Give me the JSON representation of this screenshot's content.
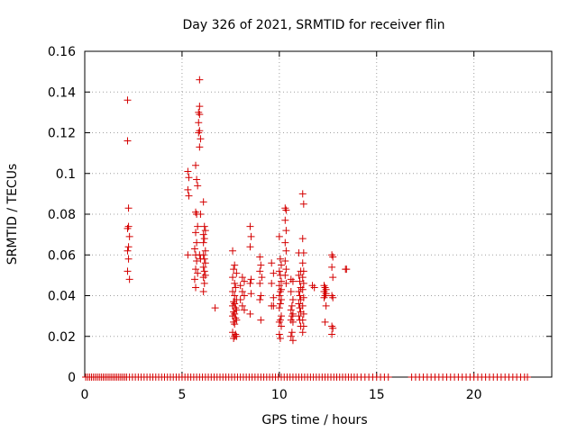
{
  "chart_data": {
    "type": "scatter",
    "title": "Day 326 of 2021, SRMTID for receiver flin",
    "xlabel": "GPS time / hours",
    "ylabel": "SRMTID / TECUs",
    "xlim": [
      0,
      24
    ],
    "ylim": [
      0,
      0.16
    ],
    "grid": true,
    "marker": "+",
    "marker_color": "#d40000",
    "xticks": [
      {
        "value": 0,
        "label": "0"
      },
      {
        "value": 5,
        "label": "5"
      },
      {
        "value": 10,
        "label": "10"
      },
      {
        "value": 15,
        "label": "15"
      },
      {
        "value": 20,
        "label": "20"
      }
    ],
    "yticks": [
      {
        "value": 0,
        "label": "0"
      },
      {
        "value": 0.02,
        "label": "0.02"
      },
      {
        "value": 0.04,
        "label": "0.04"
      },
      {
        "value": 0.06,
        "label": "0.06"
      },
      {
        "value": 0.08,
        "label": "0.08"
      },
      {
        "value": 0.1,
        "label": "0.1"
      },
      {
        "value": 0.12,
        "label": "0.12"
      },
      {
        "value": 0.14,
        "label": "0.14"
      },
      {
        "value": 0.16,
        "label": "0.16"
      }
    ],
    "zero_points_x": [
      0.05,
      0.15,
      0.25,
      0.35,
      0.45,
      0.55,
      0.65,
      0.75,
      0.85,
      0.95,
      1.05,
      1.15,
      1.25,
      1.35,
      1.45,
      1.55,
      1.65,
      1.75,
      1.85,
      1.95,
      2.05,
      2.15,
      2.3,
      2.45,
      2.6,
      2.75,
      2.9,
      3.05,
      3.2,
      3.35,
      3.5,
      3.65,
      3.8,
      3.95,
      4.1,
      4.25,
      4.4,
      4.55,
      4.7,
      4.85,
      5.0,
      5.15,
      5.3,
      5.45,
      5.6,
      5.75,
      5.9,
      6.05,
      6.2,
      6.35,
      6.5,
      6.65,
      6.8,
      6.95,
      7.1,
      7.25,
      7.4,
      7.55,
      7.7,
      7.85,
      8.0,
      8.15,
      8.3,
      8.45,
      8.6,
      8.75,
      8.9,
      9.05,
      9.2,
      9.35,
      9.5,
      9.65,
      9.8,
      9.95,
      10.1,
      10.25,
      10.4,
      10.55,
      10.7,
      10.85,
      11.0,
      11.15,
      11.3,
      11.45,
      11.6,
      11.75,
      11.9,
      12.05,
      12.2,
      12.35,
      12.5,
      12.65,
      12.8,
      12.95,
      13.1,
      13.25,
      13.4,
      13.55,
      13.7,
      13.85,
      14.0,
      14.2,
      14.4,
      14.6,
      14.8,
      15.0,
      15.2,
      15.4,
      15.6,
      16.8,
      17.0,
      17.2,
      17.4,
      17.6,
      17.8,
      18.0,
      18.2,
      18.4,
      18.6,
      18.8,
      19.0,
      19.2,
      19.4,
      19.6,
      19.8,
      20.0,
      20.2,
      20.4,
      20.6,
      20.8,
      21.0,
      21.2,
      21.4,
      21.6,
      21.8,
      22.0,
      22.2,
      22.4,
      22.6,
      22.75
    ],
    "points": [
      [
        2.2,
        0.136
      ],
      [
        2.2,
        0.116
      ],
      [
        2.25,
        0.083
      ],
      [
        2.25,
        0.074
      ],
      [
        2.2,
        0.073
      ],
      [
        2.3,
        0.069
      ],
      [
        2.25,
        0.064
      ],
      [
        2.2,
        0.062
      ],
      [
        2.25,
        0.058
      ],
      [
        2.2,
        0.052
      ],
      [
        2.3,
        0.048
      ],
      [
        5.3,
        0.101
      ],
      [
        5.35,
        0.098
      ],
      [
        5.3,
        0.092
      ],
      [
        5.35,
        0.089
      ],
      [
        5.3,
        0.06
      ],
      [
        5.7,
        0.104
      ],
      [
        5.75,
        0.097
      ],
      [
        5.8,
        0.094
      ],
      [
        5.7,
        0.081
      ],
      [
        5.75,
        0.08
      ],
      [
        5.8,
        0.074
      ],
      [
        5.7,
        0.071
      ],
      [
        5.75,
        0.066
      ],
      [
        5.65,
        0.063
      ],
      [
        5.7,
        0.06
      ],
      [
        5.75,
        0.057
      ],
      [
        5.7,
        0.053
      ],
      [
        5.8,
        0.051
      ],
      [
        5.65,
        0.048
      ],
      [
        5.7,
        0.044
      ],
      [
        5.9,
        0.146
      ],
      [
        5.9,
        0.133
      ],
      [
        5.85,
        0.13
      ],
      [
        5.9,
        0.129
      ],
      [
        5.85,
        0.125
      ],
      [
        5.9,
        0.121
      ],
      [
        5.85,
        0.12
      ],
      [
        5.95,
        0.117
      ],
      [
        5.9,
        0.113
      ],
      [
        5.95,
        0.08
      ],
      [
        5.9,
        0.06
      ],
      [
        5.95,
        0.058
      ],
      [
        6.1,
        0.086
      ],
      [
        6.15,
        0.074
      ],
      [
        6.2,
        0.072
      ],
      [
        6.1,
        0.07
      ],
      [
        6.15,
        0.068
      ],
      [
        6.1,
        0.066
      ],
      [
        6.2,
        0.062
      ],
      [
        6.1,
        0.06
      ],
      [
        6.15,
        0.058
      ],
      [
        6.2,
        0.056
      ],
      [
        6.1,
        0.054
      ],
      [
        6.15,
        0.052
      ],
      [
        6.2,
        0.05
      ],
      [
        6.1,
        0.049
      ],
      [
        6.15,
        0.046
      ],
      [
        6.1,
        0.042
      ],
      [
        6.7,
        0.034
      ],
      [
        7.6,
        0.062
      ],
      [
        7.7,
        0.055
      ],
      [
        7.65,
        0.053
      ],
      [
        7.8,
        0.051
      ],
      [
        7.6,
        0.049
      ],
      [
        7.7,
        0.046
      ],
      [
        7.75,
        0.044
      ],
      [
        7.6,
        0.042
      ],
      [
        7.7,
        0.04
      ],
      [
        7.8,
        0.038
      ],
      [
        7.65,
        0.037
      ],
      [
        7.7,
        0.036
      ],
      [
        7.6,
        0.035
      ],
      [
        7.75,
        0.034
      ],
      [
        7.8,
        0.033
      ],
      [
        7.65,
        0.032
      ],
      [
        7.7,
        0.031
      ],
      [
        7.6,
        0.03
      ],
      [
        7.75,
        0.029
      ],
      [
        7.8,
        0.028
      ],
      [
        7.65,
        0.027
      ],
      [
        7.7,
        0.026
      ],
      [
        7.6,
        0.022
      ],
      [
        7.75,
        0.021
      ],
      [
        7.7,
        0.02
      ],
      [
        7.65,
        0.019
      ],
      [
        7.8,
        0.02
      ],
      [
        8.1,
        0.049
      ],
      [
        8.2,
        0.047
      ],
      [
        8.0,
        0.045
      ],
      [
        8.1,
        0.042
      ],
      [
        8.2,
        0.04
      ],
      [
        8.0,
        0.038
      ],
      [
        8.1,
        0.035
      ],
      [
        8.2,
        0.033
      ],
      [
        8.5,
        0.074
      ],
      [
        8.55,
        0.069
      ],
      [
        8.5,
        0.064
      ],
      [
        8.55,
        0.048
      ],
      [
        8.5,
        0.046
      ],
      [
        8.55,
        0.041
      ],
      [
        8.5,
        0.031
      ],
      [
        9.0,
        0.059
      ],
      [
        9.05,
        0.055
      ],
      [
        9.0,
        0.052
      ],
      [
        9.1,
        0.049
      ],
      [
        9.0,
        0.046
      ],
      [
        9.05,
        0.04
      ],
      [
        9.0,
        0.038
      ],
      [
        9.05,
        0.028
      ],
      [
        9.6,
        0.056
      ],
      [
        9.7,
        0.051
      ],
      [
        9.6,
        0.046
      ],
      [
        9.7,
        0.039
      ],
      [
        9.6,
        0.035
      ],
      [
        9.7,
        0.035
      ],
      [
        10.0,
        0.069
      ],
      [
        10.05,
        0.058
      ],
      [
        10.1,
        0.055
      ],
      [
        10.0,
        0.052
      ],
      [
        10.05,
        0.05
      ],
      [
        10.1,
        0.047
      ],
      [
        10.0,
        0.045
      ],
      [
        10.1,
        0.043
      ],
      [
        10.05,
        0.042
      ],
      [
        10.0,
        0.04
      ],
      [
        10.1,
        0.038
      ],
      [
        10.05,
        0.036
      ],
      [
        10.0,
        0.034
      ],
      [
        10.1,
        0.03
      ],
      [
        10.05,
        0.028
      ],
      [
        10.0,
        0.027
      ],
      [
        10.1,
        0.025
      ],
      [
        10.0,
        0.021
      ],
      [
        10.05,
        0.019
      ],
      [
        10.3,
        0.083
      ],
      [
        10.35,
        0.082
      ],
      [
        10.3,
        0.077
      ],
      [
        10.35,
        0.072
      ],
      [
        10.3,
        0.066
      ],
      [
        10.35,
        0.062
      ],
      [
        10.3,
        0.057
      ],
      [
        10.35,
        0.053
      ],
      [
        10.3,
        0.05
      ],
      [
        10.35,
        0.046
      ],
      [
        10.6,
        0.048
      ],
      [
        10.7,
        0.047
      ],
      [
        10.6,
        0.042
      ],
      [
        10.7,
        0.038
      ],
      [
        10.65,
        0.035
      ],
      [
        10.6,
        0.033
      ],
      [
        10.7,
        0.031
      ],
      [
        10.65,
        0.03
      ],
      [
        10.6,
        0.028
      ],
      [
        10.7,
        0.027
      ],
      [
        10.65,
        0.022
      ],
      [
        10.6,
        0.02
      ],
      [
        10.7,
        0.018
      ],
      [
        11.0,
        0.061
      ],
      [
        11.1,
        0.052
      ],
      [
        11.0,
        0.05
      ],
      [
        11.05,
        0.047
      ],
      [
        11.1,
        0.044
      ],
      [
        11.0,
        0.042
      ],
      [
        11.05,
        0.04
      ],
      [
        11.1,
        0.038
      ],
      [
        11.0,
        0.036
      ],
      [
        11.05,
        0.034
      ],
      [
        11.1,
        0.032
      ],
      [
        11.0,
        0.03
      ],
      [
        11.05,
        0.028
      ],
      [
        11.1,
        0.025
      ],
      [
        11.2,
        0.09
      ],
      [
        11.25,
        0.085
      ],
      [
        11.2,
        0.068
      ],
      [
        11.25,
        0.061
      ],
      [
        11.2,
        0.056
      ],
      [
        11.25,
        0.052
      ],
      [
        11.2,
        0.049
      ],
      [
        11.25,
        0.046
      ],
      [
        11.2,
        0.043
      ],
      [
        11.25,
        0.039
      ],
      [
        11.2,
        0.035
      ],
      [
        11.25,
        0.031
      ],
      [
        11.2,
        0.028
      ],
      [
        11.25,
        0.025
      ],
      [
        11.2,
        0.022
      ],
      [
        11.7,
        0.045
      ],
      [
        11.8,
        0.044
      ],
      [
        12.3,
        0.045
      ],
      [
        12.35,
        0.044
      ],
      [
        12.4,
        0.043
      ],
      [
        12.3,
        0.042
      ],
      [
        12.4,
        0.041
      ],
      [
        12.35,
        0.04
      ],
      [
        12.3,
        0.039
      ],
      [
        12.4,
        0.035
      ],
      [
        12.35,
        0.027
      ],
      [
        12.7,
        0.06
      ],
      [
        12.75,
        0.059
      ],
      [
        12.7,
        0.054
      ],
      [
        12.75,
        0.049
      ],
      [
        12.7,
        0.04
      ],
      [
        12.75,
        0.039
      ],
      [
        12.7,
        0.025
      ],
      [
        12.75,
        0.024
      ],
      [
        12.7,
        0.021
      ],
      [
        13.4,
        0.053
      ],
      [
        13.45,
        0.053
      ]
    ]
  }
}
